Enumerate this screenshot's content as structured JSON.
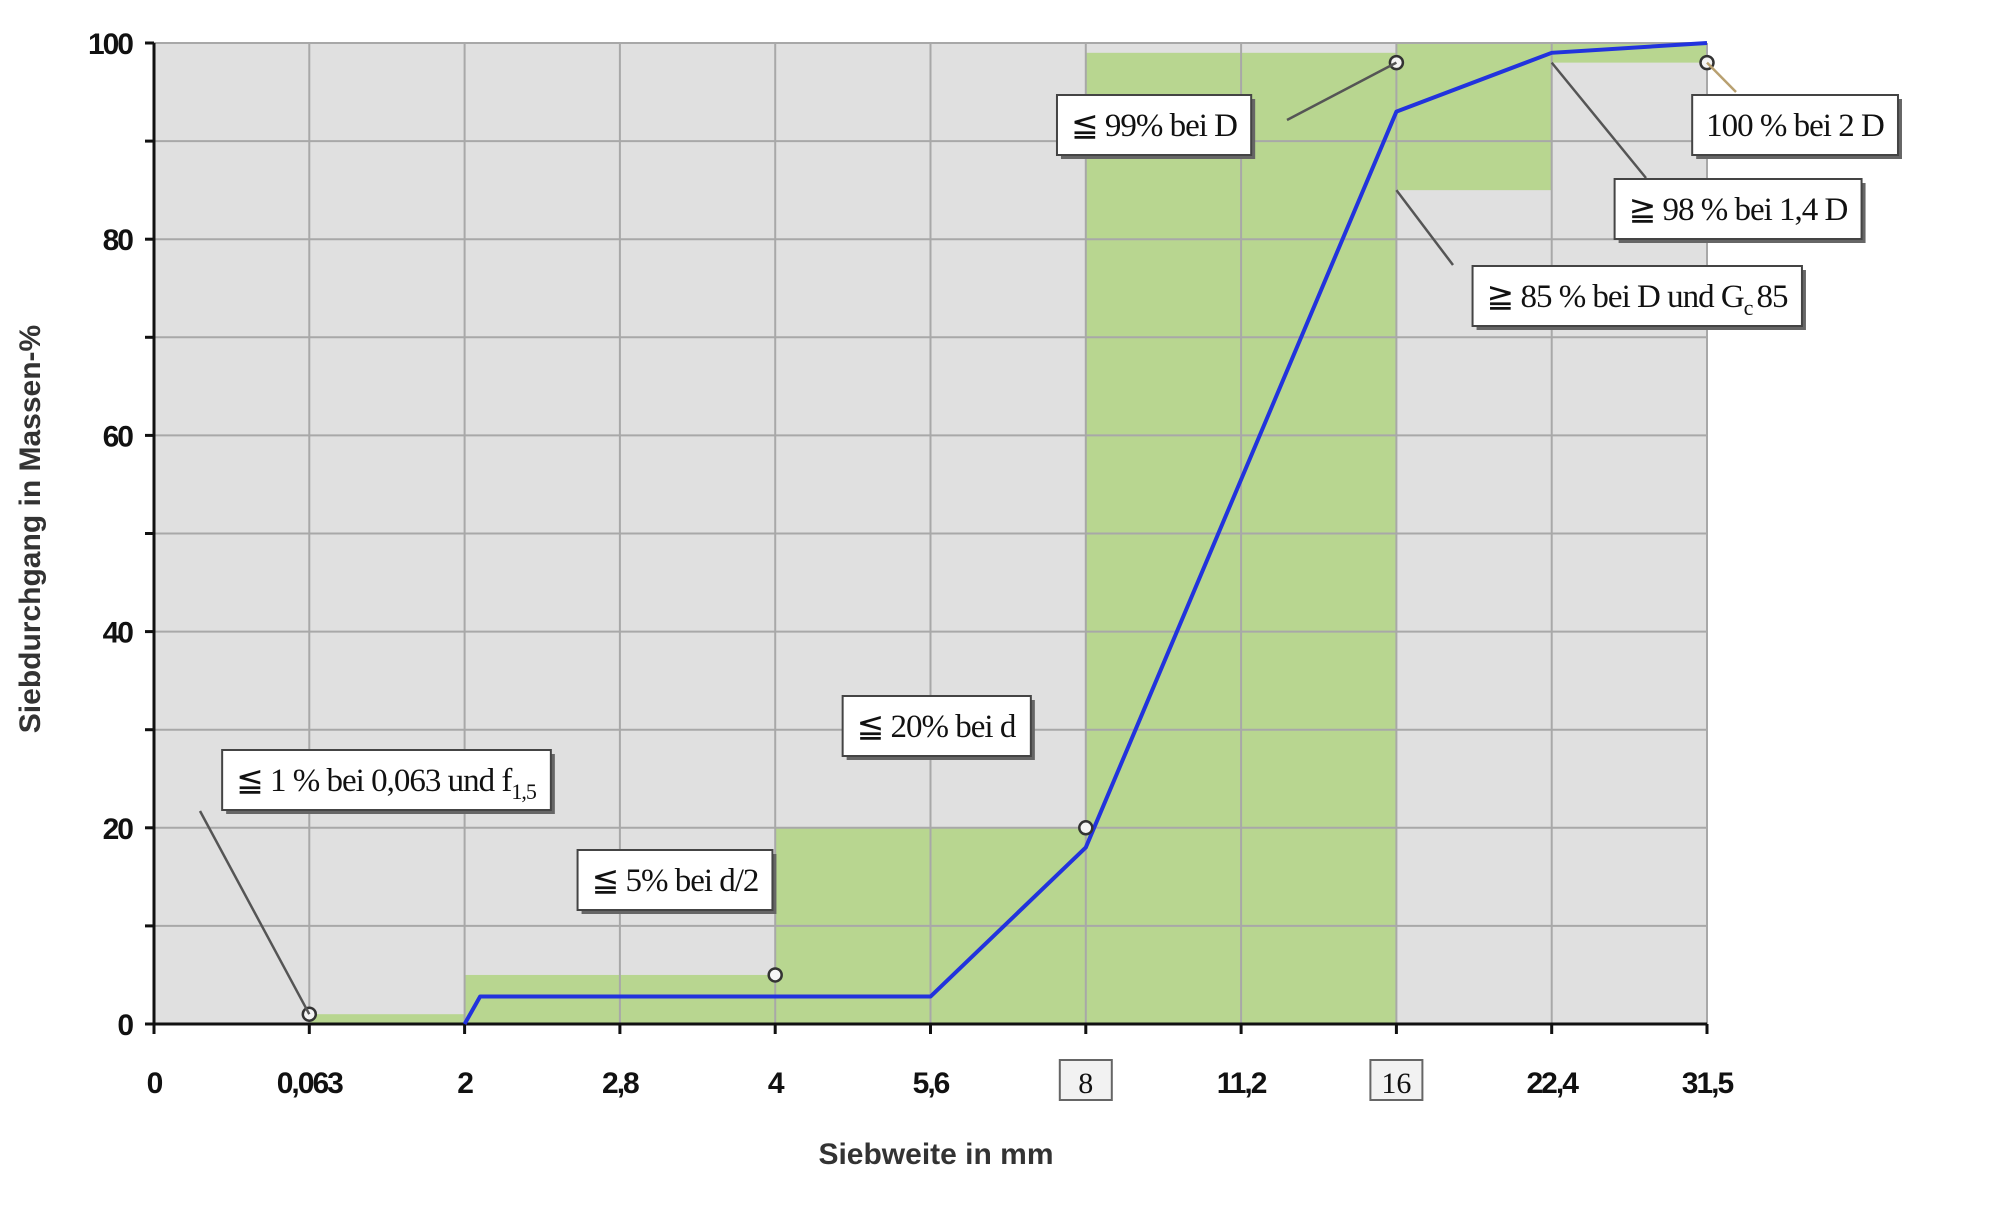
{
  "chart_data": {
    "type": "line",
    "xlabel": "Siebweite in mm",
    "ylabel": "Siebdurchgang in Massen-%",
    "xlim": [
      0,
      10
    ],
    "xticks": [
      {
        "value": 0,
        "label": "0"
      },
      {
        "value": 1,
        "label": "0,063"
      },
      {
        "value": 2,
        "label": "2"
      },
      {
        "value": 3,
        "label": "2,8"
      },
      {
        "value": 4,
        "label": "4"
      },
      {
        "value": 5,
        "label": "5,6"
      },
      {
        "value": 6,
        "label": "8",
        "boxed": true
      },
      {
        "value": 7,
        "label": "11,2"
      },
      {
        "value": 8,
        "label": "16",
        "boxed": true
      },
      {
        "value": 9,
        "label": "22,4"
      },
      {
        "value": 10,
        "label": "31,5"
      }
    ],
    "ylim": [
      0,
      100
    ],
    "yticks": [
      0,
      20,
      40,
      60,
      80,
      100
    ],
    "yminorticks": [
      10,
      30,
      50,
      70,
      90
    ],
    "grid": true,
    "zone_color": "#b8d690",
    "zones": [
      {
        "x": [
          1,
          2
        ],
        "y": [
          0,
          1
        ]
      },
      {
        "x": [
          2,
          4
        ],
        "y": [
          0,
          5
        ]
      },
      {
        "x": [
          4,
          6
        ],
        "y": [
          0,
          20
        ]
      },
      {
        "x": [
          6,
          8
        ],
        "y": [
          0,
          99
        ]
      },
      {
        "x": [
          8,
          9
        ],
        "y": [
          85,
          100
        ]
      },
      {
        "x": [
          9,
          10
        ],
        "y": [
          98,
          100
        ]
      }
    ],
    "series": [
      {
        "color": "#2233dd",
        "x": [
          2,
          2.1,
          5,
          6,
          8,
          9,
          10
        ],
        "values": [
          0,
          2.8,
          2.8,
          18,
          93,
          99,
          100
        ]
      }
    ],
    "markers": {
      "x": [
        1,
        4,
        6,
        8,
        10
      ],
      "values": [
        1,
        5,
        20,
        98,
        98
      ]
    },
    "annotations": [
      {
        "text": "≦ 1 % bei 0,063 und f",
        "sub": "1,5"
      },
      {
        "text": "≦ 5% bei d/2"
      },
      {
        "text": "≦ 20% bei d"
      },
      {
        "text": "≦ 99% bei D"
      },
      {
        "text": "100 % bei 2 D"
      },
      {
        "text": "≧ 98 % bei 1,4 D"
      },
      {
        "text": "≧ 85 % bei D und G",
        "sub": "c",
        "text_after": "85"
      }
    ]
  }
}
